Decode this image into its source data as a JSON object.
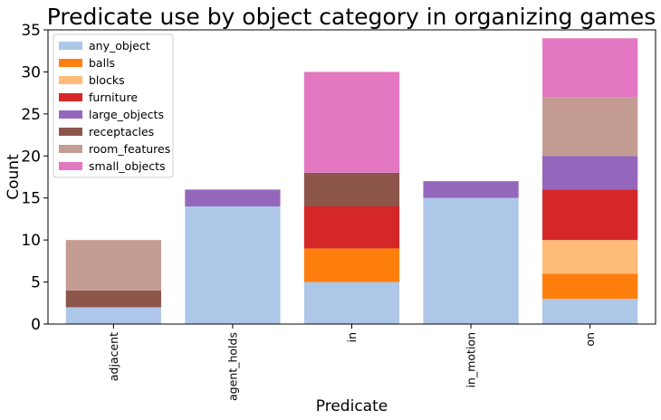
{
  "chart_data": {
    "type": "bar",
    "stacked": true,
    "title": "Predicate use by object category in organizing games",
    "xlabel": "Predicate",
    "ylabel": "Count",
    "ylim": [
      0,
      35
    ],
    "yticks": [
      0,
      5,
      10,
      15,
      20,
      25,
      30,
      35
    ],
    "grid": false,
    "legend_position": "top-left",
    "categories": [
      "adjacent",
      "agent_holds",
      "in",
      "in_motion",
      "on"
    ],
    "series": [
      {
        "name": "any_object",
        "color": "#aec7e8",
        "values": [
          2,
          14,
          5,
          15,
          3
        ]
      },
      {
        "name": "balls",
        "color": "#ff7f0e",
        "values": [
          0,
          0,
          4,
          0,
          3
        ]
      },
      {
        "name": "blocks",
        "color": "#ffbb78",
        "values": [
          0,
          0,
          0,
          0,
          4
        ]
      },
      {
        "name": "furniture",
        "color": "#d62728",
        "values": [
          0,
          0,
          5,
          0,
          6
        ]
      },
      {
        "name": "large_objects",
        "color": "#9467bd",
        "values": [
          0,
          2,
          0,
          2,
          4
        ]
      },
      {
        "name": "receptacles",
        "color": "#8c564b",
        "values": [
          2,
          0,
          4,
          0,
          0
        ]
      },
      {
        "name": "room_features",
        "color": "#c49c94",
        "values": [
          6,
          0,
          0,
          0,
          7
        ]
      },
      {
        "name": "small_objects",
        "color": "#e377c2",
        "values": [
          0,
          0,
          12,
          0,
          7
        ]
      }
    ]
  }
}
